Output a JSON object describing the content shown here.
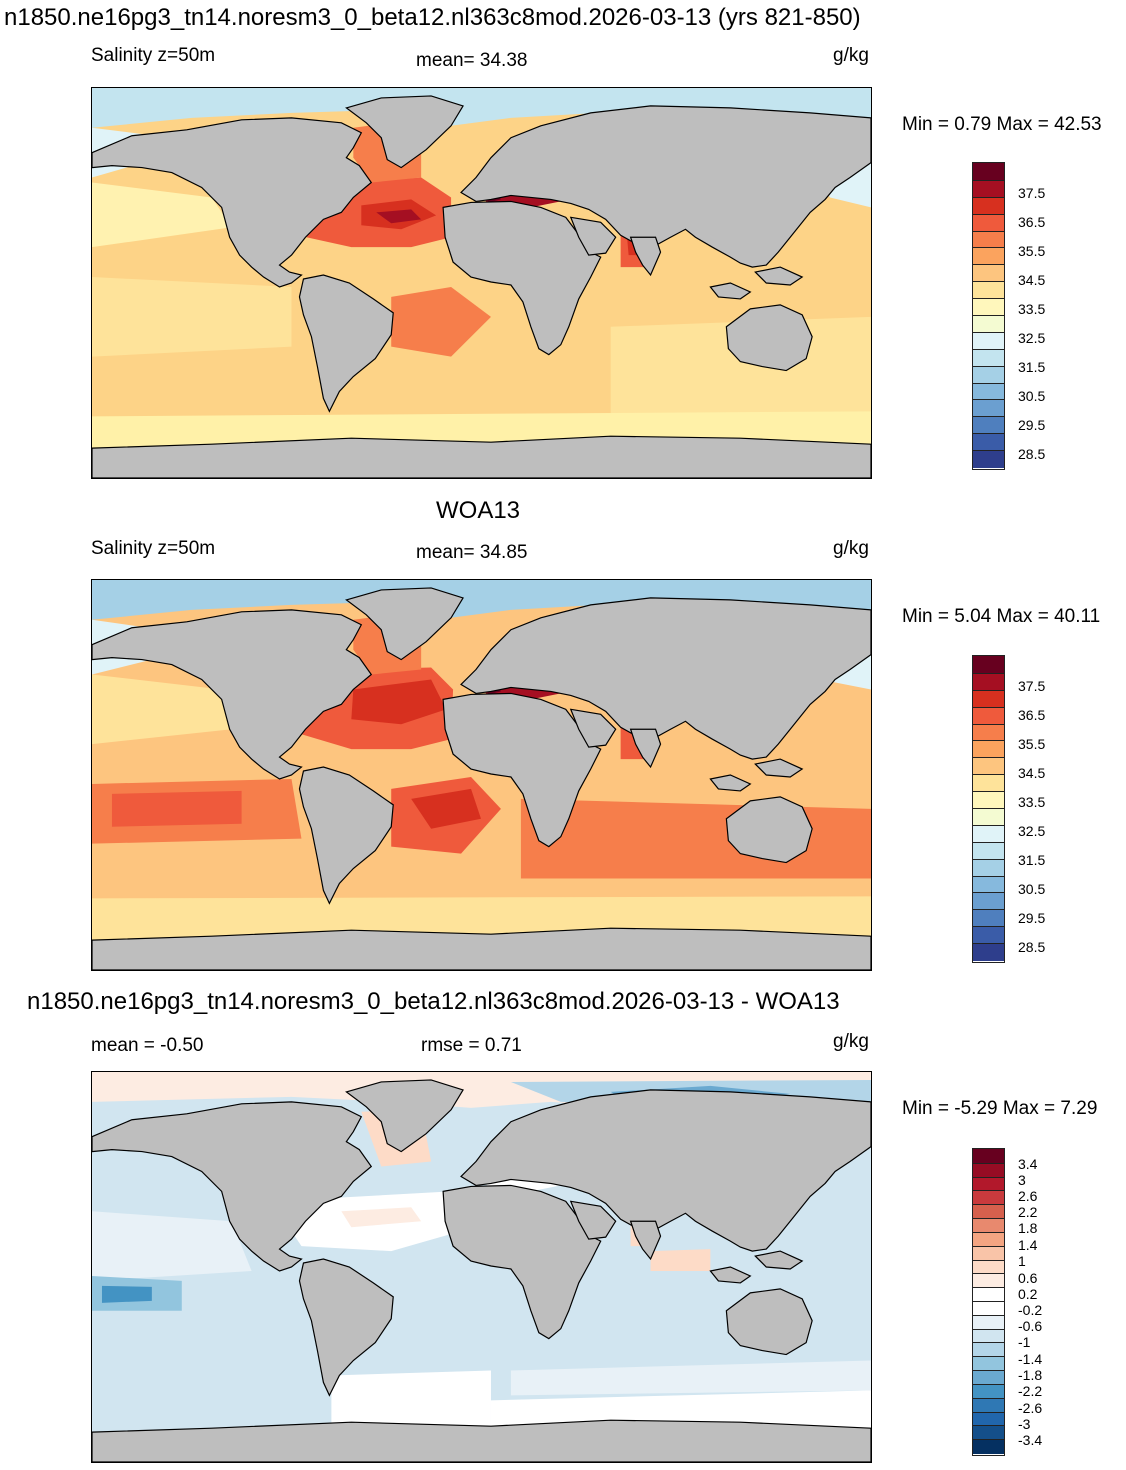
{
  "panels": [
    {
      "id": "model",
      "title": "n1850.ne16pg3_tn14.noresm3_0_beta12.nl363c8mod.2026-03-13 (yrs 821-850)",
      "left_label": "Salinity z=50m",
      "center_label": "mean=  34.38",
      "units": "g/kg",
      "minmax": "Min =   0.79 Max =  42.53",
      "colorbar": {
        "colors": [
          "#67001f",
          "#a50f22",
          "#d7301f",
          "#ef5a3c",
          "#f67e4b",
          "#fba35e",
          "#fdc57f",
          "#fee39a",
          "#fff7bc",
          "#f4fbd2",
          "#e0f3f8",
          "#c3e4ef",
          "#a5d0e6",
          "#86b9dd",
          "#6b9fd0",
          "#4f7fbe",
          "#3a5ca8",
          "#2e3e8c"
        ],
        "ticks": [
          "37.5",
          "36.5",
          "35.5",
          "34.5",
          "33.5",
          "32.5",
          "31.5",
          "30.5",
          "29.5",
          "28.5"
        ]
      }
    },
    {
      "id": "obs",
      "title": "WOA13",
      "left_label": "Salinity z=50m",
      "center_label": "mean=  34.85",
      "units": "g/kg",
      "minmax": "Min =   5.04 Max =  40.11",
      "colorbar": {
        "colors": [
          "#67001f",
          "#a50f22",
          "#d7301f",
          "#ef5a3c",
          "#f67e4b",
          "#fba35e",
          "#fdc57f",
          "#fee39a",
          "#fff7bc",
          "#f4fbd2",
          "#e0f3f8",
          "#c3e4ef",
          "#a5d0e6",
          "#86b9dd",
          "#6b9fd0",
          "#4f7fbe",
          "#3a5ca8",
          "#2e3e8c"
        ],
        "ticks": [
          "37.5",
          "36.5",
          "35.5",
          "34.5",
          "33.5",
          "32.5",
          "31.5",
          "30.5",
          "29.5",
          "28.5"
        ]
      }
    },
    {
      "id": "diff",
      "title": "n1850.ne16pg3_tn14.noresm3_0_beta12.nl363c8mod.2026-03-13 - WOA13",
      "left_label": "mean =  -0.50",
      "center_label": "rmse =   0.71",
      "units": "g/kg",
      "minmax": "Min =  -5.29 Max =   7.29",
      "colorbar": {
        "colors": [
          "#67001f",
          "#960c24",
          "#b2182b",
          "#c93a3d",
          "#d6604d",
          "#e8896e",
          "#f4a582",
          "#f9c4a8",
          "#fddbc7",
          "#fdece2",
          "#ffffff",
          "#ffffff",
          "#e8f1f7",
          "#d1e5f0",
          "#b3d5e8",
          "#92c5de",
          "#6aa9d0",
          "#4393c3",
          "#2f78b4",
          "#2166ac",
          "#144f8a",
          "#053061"
        ],
        "ticks": [
          "3.4",
          "3",
          "2.6",
          "2.2",
          "1.8",
          "1.4",
          "1",
          "0.6",
          "0.2",
          "-0.2",
          "-0.6",
          "-1",
          "-1.4",
          "-1.8",
          "-2.2",
          "-2.6",
          "-3",
          "-3.4"
        ]
      }
    }
  ]
}
